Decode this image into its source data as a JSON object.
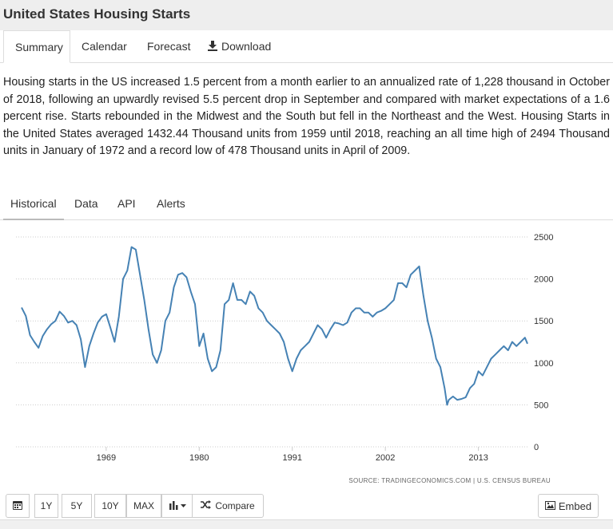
{
  "page": {
    "title": "United States Housing Starts"
  },
  "main_tabs": [
    {
      "label": "Summary",
      "active": true
    },
    {
      "label": "Calendar",
      "active": false
    },
    {
      "label": "Forecast",
      "active": false
    },
    {
      "label": "Download",
      "active": false,
      "icon": "download-icon"
    }
  ],
  "summary": {
    "text": "Housing starts in the US increased 1.5 percent from a month earlier to an annualized rate of 1,228 thousand in October of 2018, following an upwardly revised 5.5 percent drop in September and compared with market expectations of a 1.6 percent rise. Starts rebounded in the Midwest and the South but fell in the Northeast and the West. Housing Starts in the United States averaged 1432.44 Thousand units from 1959 until 2018, reaching an all time high of 2494 Thousand units in January of 1972 and a record low of 478 Thousand units in April of 2009."
  },
  "sub_tabs": [
    {
      "label": "Historical",
      "active": true
    },
    {
      "label": "Data",
      "active": false
    },
    {
      "label": "API",
      "active": false
    },
    {
      "label": "Alerts",
      "active": false
    }
  ],
  "chart_data": {
    "type": "line",
    "title": "",
    "xlabel": "",
    "ylabel": "",
    "y_axis_side": "right",
    "ylim": [
      0,
      2500
    ],
    "y_ticks": [
      0,
      500,
      1000,
      1500,
      2000,
      2500
    ],
    "xlim": [
      1959.0,
      2018.8
    ],
    "x_ticks": [
      1969,
      1980,
      1991,
      2002,
      2013
    ],
    "grid": "horizontal dotted",
    "line_color": "#4682b4",
    "source": "SOURCE: TRADINGECONOMICS.COM | U.S. CENSUS BUREAU",
    "series": [
      {
        "x": [
          1959.0,
          1959.5,
          1960.0,
          1960.5,
          1961.0,
          1961.5,
          1962.0,
          1962.5,
          1963.0,
          1963.5,
          1964.0,
          1964.5,
          1965.0,
          1965.5,
          1966.0,
          1966.5,
          1967.0,
          1967.5,
          1968.0,
          1968.5,
          1969.0,
          1969.5,
          1970.0,
          1970.5,
          1971.0,
          1971.5,
          1972.0,
          1972.5,
          1973.0,
          1973.5,
          1974.0,
          1974.5,
          1975.0,
          1975.5,
          1976.0,
          1976.5,
          1977.0,
          1977.5,
          1978.0,
          1978.5,
          1979.0,
          1979.5,
          1980.0,
          1980.5,
          1981.0,
          1981.5,
          1982.0,
          1982.5,
          1983.0,
          1983.5,
          1984.0,
          1984.5,
          1985.0,
          1985.5,
          1986.0,
          1986.5,
          1987.0,
          1987.5,
          1988.0,
          1988.5,
          1989.0,
          1989.5,
          1990.0,
          1990.5,
          1991.0,
          1991.5,
          1992.0,
          1992.5,
          1993.0,
          1993.5,
          1994.0,
          1994.5,
          1995.0,
          1995.5,
          1996.0,
          1996.5,
          1997.0,
          1997.5,
          1998.0,
          1998.5,
          1999.0,
          1999.5,
          2000.0,
          2000.5,
          2001.0,
          2001.5,
          2002.0,
          2002.5,
          2003.0,
          2003.5,
          2004.0,
          2004.5,
          2005.0,
          2005.5,
          2006.0,
          2006.5,
          2007.0,
          2007.5,
          2008.0,
          2008.5,
          2009.0,
          2009.3,
          2009.5,
          2010.0,
          2010.5,
          2011.0,
          2011.5,
          2012.0,
          2012.5,
          2013.0,
          2013.5,
          2014.0,
          2014.5,
          2015.0,
          2015.5,
          2016.0,
          2016.5,
          2017.0,
          2017.5,
          2018.0,
          2018.5,
          2018.8
        ],
        "y": [
          1660,
          1560,
          1330,
          1250,
          1180,
          1320,
          1400,
          1460,
          1500,
          1610,
          1560,
          1480,
          1500,
          1450,
          1280,
          950,
          1200,
          1350,
          1480,
          1550,
          1580,
          1420,
          1250,
          1550,
          2000,
          2100,
          2380,
          2350,
          2050,
          1750,
          1400,
          1100,
          1000,
          1150,
          1500,
          1600,
          1900,
          2050,
          2070,
          2020,
          1850,
          1700,
          1200,
          1350,
          1050,
          900,
          950,
          1150,
          1700,
          1750,
          1950,
          1750,
          1750,
          1700,
          1850,
          1800,
          1650,
          1600,
          1500,
          1450,
          1400,
          1350,
          1250,
          1050,
          900,
          1050,
          1150,
          1200,
          1250,
          1350,
          1450,
          1400,
          1300,
          1400,
          1480,
          1470,
          1450,
          1480,
          1600,
          1650,
          1650,
          1600,
          1600,
          1550,
          1600,
          1620,
          1650,
          1700,
          1750,
          1950,
          1950,
          1900,
          2050,
          2100,
          2150,
          1800,
          1500,
          1300,
          1050,
          950,
          700,
          500,
          560,
          600,
          560,
          570,
          590,
          700,
          750,
          900,
          850,
          950,
          1050,
          1100,
          1150,
          1200,
          1150,
          1250,
          1200,
          1250,
          1300,
          1228
        ]
      }
    ]
  },
  "toolbar": {
    "buttons": [
      {
        "label": "",
        "icon": "calendar-icon"
      },
      {
        "label": "1Y"
      },
      {
        "label": "5Y"
      },
      {
        "label": "10Y"
      },
      {
        "label": "MAX"
      },
      {
        "label": "",
        "icon": "bar-chart-dropdown-icon"
      },
      {
        "label": "Compare",
        "icon": "shuffle-icon"
      }
    ],
    "embed_label": "Embed",
    "embed_icon": "image-icon"
  }
}
